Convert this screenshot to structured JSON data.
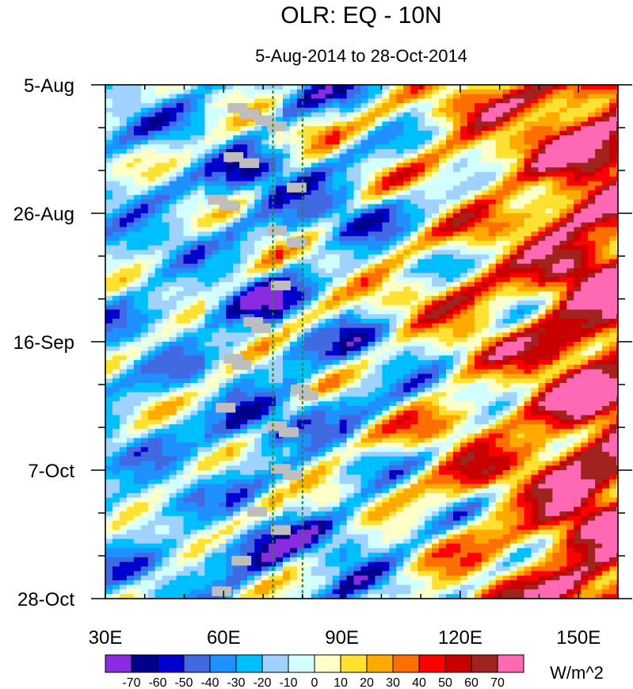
{
  "chart_data": {
    "type": "heatmap",
    "title": "OLR: EQ - 10N",
    "subtitle": "5-Aug-2014 to 28-Oct-2014",
    "units": "W/m^2",
    "x_range": [
      30,
      160
    ],
    "y_range_days": [
      0,
      84
    ],
    "x_major_ticks": [
      {
        "value": 30,
        "label": "30E"
      },
      {
        "value": 60,
        "label": "60E"
      },
      {
        "value": 90,
        "label": "90E"
      },
      {
        "value": 120,
        "label": "120E"
      },
      {
        "value": 150,
        "label": "150E"
      }
    ],
    "x_minor_step": 10,
    "y_major_ticks": [
      {
        "day": 0,
        "label": "5-Aug"
      },
      {
        "day": 21,
        "label": "26-Aug"
      },
      {
        "day": 42,
        "label": "16-Sep"
      },
      {
        "day": 63,
        "label": "7-Oct"
      },
      {
        "day": 84,
        "label": "28-Oct"
      }
    ],
    "y_minor_step_days": 7,
    "reference_lines_lon": [
      72.5,
      80
    ],
    "reference_line_color": "#228b22",
    "missing_color": "#bebebe",
    "colorbar": {
      "levels": [
        -70,
        -60,
        -50,
        -40,
        -30,
        -20,
        -10,
        0,
        10,
        20,
        30,
        40,
        50,
        60,
        70
      ],
      "colors": [
        "#8a2be2",
        "#00008b",
        "#0000cd",
        "#4169e1",
        "#1e90ff",
        "#00bfff",
        "#a0d2ff",
        "#d2ffff",
        "#ffffc8",
        "#ffe132",
        "#ffaa00",
        "#ff6e00",
        "#ff0000",
        "#c80000",
        "#a0231e",
        "#ff69b4"
      ]
    }
  }
}
